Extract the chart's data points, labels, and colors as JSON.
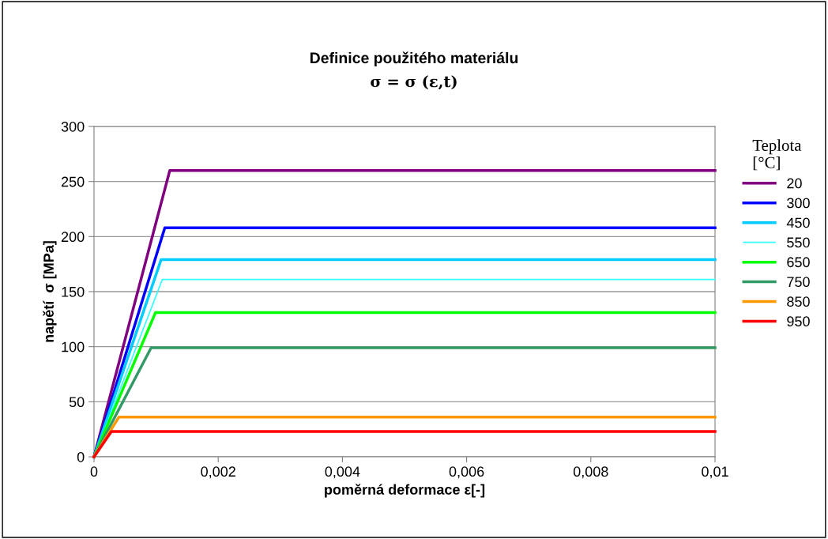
{
  "chart_data": {
    "type": "line",
    "title": "Definice použitého materiálu",
    "subtitle": "σ = σ (ε,t)",
    "xlabel": "poměrná deformace ε[-]",
    "ylabel": "napětí  σ [MPa]",
    "legend_title": "Teplota\n[°C]",
    "series": [
      {
        "name": "20",
        "color": "#800080",
        "x": [
          0,
          0.00122,
          0.01
        ],
        "values": [
          0,
          260,
          260
        ]
      },
      {
        "name": "300",
        "color": "#0000ff",
        "x": [
          0,
          0.00114,
          0.01
        ],
        "values": [
          0,
          208,
          208
        ]
      },
      {
        "name": "450",
        "color": "#00ccff",
        "x": [
          0,
          0.00108,
          0.01
        ],
        "values": [
          0,
          179,
          179
        ]
      },
      {
        "name": "550",
        "color": "#33ffff",
        "x": [
          0,
          0.0011,
          0.01
        ],
        "values": [
          0,
          161,
          161
        ]
      },
      {
        "name": "650",
        "color": "#00ff00",
        "x": [
          0,
          0.00099,
          0.01
        ],
        "values": [
          0,
          131,
          131
        ]
      },
      {
        "name": "750",
        "color": "#339966",
        "x": [
          0,
          0.00092,
          0.01
        ],
        "values": [
          0,
          99,
          99
        ]
      },
      {
        "name": "850",
        "color": "#ff9900",
        "x": [
          0,
          0.0004,
          0.01
        ],
        "values": [
          0,
          36,
          36
        ]
      },
      {
        "name": "950",
        "color": "#ff0000",
        "x": [
          0,
          0.00028,
          0.01
        ],
        "values": [
          0,
          23,
          23
        ]
      }
    ],
    "xlim": [
      0,
      0.01
    ],
    "xticks": [
      0,
      {
        "value": 0.002,
        "label": "0,002"
      },
      {
        "value": 0.004,
        "label": "0,004"
      },
      {
        "value": 0.006,
        "label": "0,006"
      },
      {
        "value": 0.008,
        "label": "0,008"
      },
      {
        "value": 0.01,
        "label": "0,01"
      }
    ],
    "ylim": [
      0,
      300
    ],
    "yticks": [
      0,
      50,
      100,
      150,
      200,
      250,
      300
    ],
    "grid": "y",
    "legend": "right",
    "marker": "none",
    "line_style": "solid"
  }
}
